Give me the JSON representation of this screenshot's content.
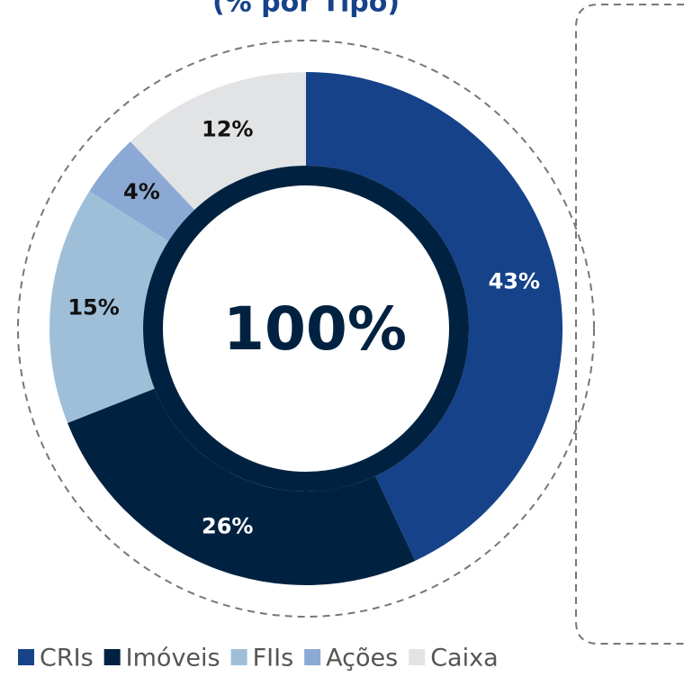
{
  "chart_data": {
    "type": "donut",
    "title": "(% por Tipo)",
    "center_label": "100%",
    "categories": [
      "CRIs",
      "Imóveis",
      "FIIs",
      "Ações",
      "Caixa"
    ],
    "values": [
      43,
      26,
      15,
      4,
      12
    ],
    "value_labels": [
      "43%",
      "26%",
      "15%",
      "4%",
      "12%"
    ],
    "colors": [
      "#16428a",
      "#002240",
      "#9fbfd9",
      "#8ba9d4",
      "#e2e3e5"
    ],
    "legend": "bottom"
  }
}
